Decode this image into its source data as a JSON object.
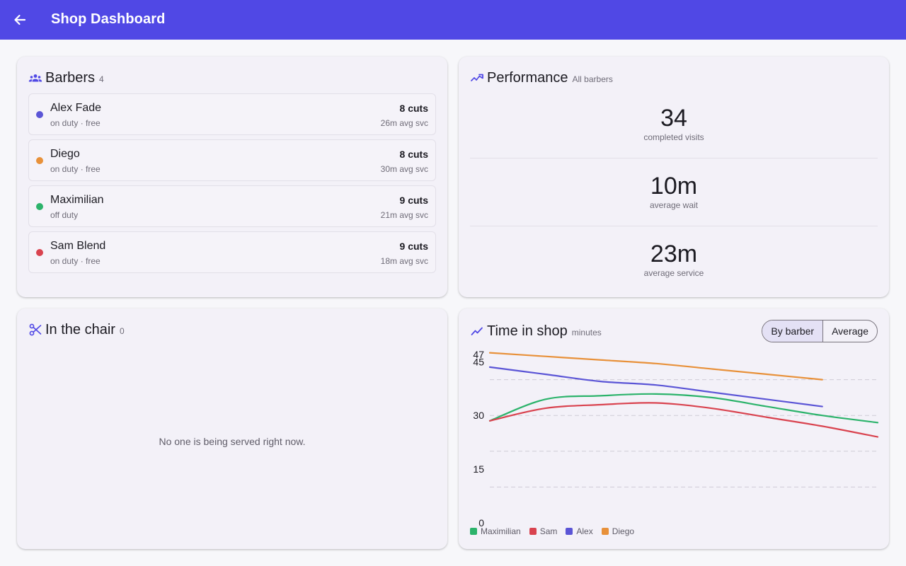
{
  "appbar": {
    "title": "Shop Dashboard"
  },
  "barbers": {
    "title": "Barbers",
    "count": "4",
    "items": [
      {
        "name": "Alex Fade",
        "status": "on duty · free",
        "cuts": "8 cuts",
        "avg": "26m avg svc",
        "color": "#5b55d6"
      },
      {
        "name": "Diego",
        "status": "on duty · free",
        "cuts": "8 cuts",
        "avg": "30m avg svc",
        "color": "#e8913a"
      },
      {
        "name": "Maximilian",
        "status": "off duty",
        "cuts": "9 cuts",
        "avg": "21m avg svc",
        "color": "#2cb36b"
      },
      {
        "name": "Sam Blend",
        "status": "on duty · free",
        "cuts": "9 cuts",
        "avg": "18m avg svc",
        "color": "#d9434f"
      }
    ]
  },
  "performance": {
    "title": "Performance",
    "subtitle": "All barbers",
    "stats": [
      {
        "value": "34",
        "label": "completed visits"
      },
      {
        "value": "10m",
        "label": "average wait"
      },
      {
        "value": "23m",
        "label": "average service"
      }
    ]
  },
  "chair": {
    "title": "In the chair",
    "count": "0",
    "empty_message": "No one is being served right now."
  },
  "time_in_shop": {
    "title": "Time in shop",
    "subtitle": "minutes",
    "toggle": {
      "by_barber": "By barber",
      "average": "Average",
      "selected": "By barber"
    }
  },
  "chart_data": {
    "type": "line",
    "ylim": [
      0,
      50
    ],
    "yticks": [
      "47",
      "45",
      "30",
      "15",
      "0"
    ],
    "grid": true,
    "legend_placement": "bottom-left",
    "series": [
      {
        "name": "Maximilian",
        "color": "#2cb36b",
        "values": [
          28.5,
          34.5,
          35.5,
          36.0,
          35.0,
          32.5,
          30.0,
          28.0
        ]
      },
      {
        "name": "Sam",
        "color": "#d9434f",
        "values": [
          28.5,
          32.0,
          33.0,
          33.5,
          32.0,
          29.5,
          27.0,
          24.0
        ]
      },
      {
        "name": "Alex",
        "color": "#5b55d6",
        "values": [
          43.5,
          41.5,
          39.5,
          38.5,
          36.5,
          34.5,
          32.5
        ]
      },
      {
        "name": "Diego",
        "color": "#e8913a",
        "values": [
          47.5,
          46.5,
          45.5,
          44.5,
          43.0,
          41.5,
          40.0
        ]
      }
    ]
  }
}
